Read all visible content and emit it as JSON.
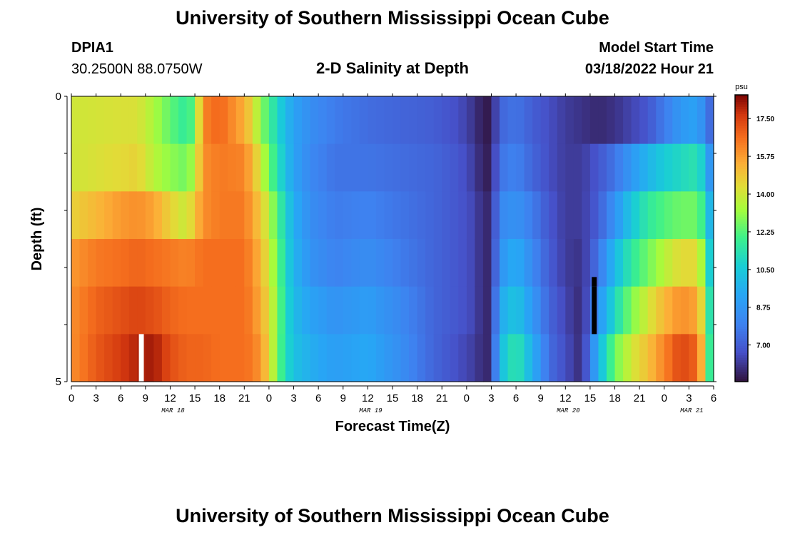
{
  "header": {
    "title": "University of Southern Mississippi Ocean Cube",
    "station_id": "DPIA1",
    "coordinates": "30.2500N  88.0750W",
    "subtitle": "2-D Salinity at Depth",
    "model_start_label": "Model Start Time",
    "model_start_value": "03/18/2022 Hour 21"
  },
  "footer": {
    "title": "University of Southern Mississippi Ocean Cube"
  },
  "chart_data": {
    "type": "heatmap",
    "title": "2-D Salinity at Depth",
    "xlabel": "Forecast Time(Z)",
    "ylabel": "Depth (ft)",
    "ylim": [
      0,
      5
    ],
    "y_tick_labels": [
      "0",
      "5"
    ],
    "x_tick_labels": [
      "0",
      "3",
      "6",
      "9",
      "12",
      "15",
      "18",
      "21",
      "0",
      "3",
      "6",
      "9",
      "12",
      "15",
      "18",
      "21",
      "0",
      "3",
      "6",
      "9",
      "12",
      "15",
      "18",
      "21",
      "0",
      "3",
      "6"
    ],
    "date_labels": [
      {
        "label": "MAR 18",
        "hour": 12
      },
      {
        "label": "MAR 19",
        "hour": 36
      },
      {
        "label": "MAR 20",
        "hour": 60
      },
      {
        "label": "MAR 21",
        "hour": 75
      }
    ],
    "x_range_hours": [
      0,
      78
    ],
    "colorbar": {
      "unit": "psu",
      "range": [
        5.3,
        18.6
      ],
      "tick_labels": [
        "17.50",
        "15.75",
        "14.00",
        "12.25",
        "10.50",
        "8.75",
        "7.00"
      ],
      "tick_values": [
        17.5,
        15.75,
        14.0,
        12.25,
        10.5,
        8.75,
        7.0
      ]
    },
    "depth_layers": 6,
    "time_step_hours": 1,
    "salinity_profile_keypoints": [
      {
        "hour": 0,
        "layers": [
          14.0,
          14.0,
          14.6,
          15.8,
          16.0,
          16.0
        ]
      },
      {
        "hour": 3,
        "layers": [
          14.1,
          14.2,
          15.2,
          16.4,
          16.8,
          17.0
        ]
      },
      {
        "hour": 6,
        "layers": [
          14.2,
          14.4,
          15.8,
          16.6,
          17.2,
          17.6
        ]
      },
      {
        "hour": 8,
        "layers": [
          14.2,
          14.6,
          16.0,
          16.8,
          17.4,
          18.0
        ]
      },
      {
        "hour": 10,
        "layers": [
          13.4,
          13.6,
          15.6,
          16.6,
          17.2,
          18.2
        ]
      },
      {
        "hour": 12,
        "layers": [
          12.4,
          13.0,
          14.6,
          16.4,
          16.8,
          17.2
        ]
      },
      {
        "hour": 14,
        "layers": [
          11.6,
          12.6,
          13.8,
          16.2,
          16.6,
          16.8
        ]
      },
      {
        "hour": 15,
        "layers": [
          12.6,
          13.6,
          15.0,
          16.4,
          16.6,
          16.8
        ]
      },
      {
        "hour": 16,
        "layers": [
          16.2,
          16.0,
          16.0,
          16.6,
          16.6,
          16.8
        ]
      },
      {
        "hour": 18,
        "layers": [
          16.8,
          16.4,
          16.4,
          16.6,
          16.6,
          16.6
        ]
      },
      {
        "hour": 21,
        "layers": [
          15.4,
          16.2,
          16.4,
          16.6,
          16.6,
          16.6
        ]
      },
      {
        "hour": 22,
        "layers": [
          14.4,
          15.2,
          15.6,
          16.0,
          16.2,
          16.4
        ]
      },
      {
        "hour": 23,
        "layers": [
          13.0,
          14.0,
          14.8,
          15.2,
          15.4,
          15.8
        ]
      },
      {
        "hour": 24,
        "layers": [
          12.0,
          12.6,
          13.6,
          14.0,
          14.4,
          14.6
        ]
      },
      {
        "hour": 25,
        "layers": [
          11.0,
          11.4,
          12.2,
          12.6,
          12.8,
          12.6
        ]
      },
      {
        "hour": 26,
        "layers": [
          10.0,
          10.2,
          10.8,
          11.0,
          11.2,
          11.2
        ]
      },
      {
        "hour": 27,
        "layers": [
          9.2,
          9.2,
          9.6,
          9.8,
          10.0,
          10.2
        ]
      },
      {
        "hour": 29,
        "layers": [
          8.4,
          8.2,
          8.4,
          8.6,
          9.2,
          9.6
        ]
      },
      {
        "hour": 32,
        "layers": [
          7.8,
          7.6,
          7.8,
          8.0,
          8.6,
          9.0
        ]
      },
      {
        "hour": 36,
        "layers": [
          7.4,
          7.6,
          8.0,
          8.4,
          9.0,
          9.4
        ]
      },
      {
        "hour": 40,
        "layers": [
          7.2,
          7.4,
          7.6,
          7.8,
          8.2,
          8.4
        ]
      },
      {
        "hour": 44,
        "layers": [
          7.0,
          7.2,
          7.2,
          7.2,
          7.2,
          7.2
        ]
      },
      {
        "hour": 47,
        "layers": [
          6.6,
          6.8,
          6.8,
          6.8,
          6.8,
          6.6
        ]
      },
      {
        "hour": 49,
        "layers": [
          6.0,
          6.2,
          6.4,
          6.4,
          6.4,
          6.2
        ]
      },
      {
        "hour": 50,
        "layers": [
          5.5,
          5.6,
          5.8,
          5.8,
          5.8,
          5.8
        ]
      },
      {
        "hour": 51,
        "layers": [
          5.5,
          5.6,
          5.8,
          5.8,
          5.8,
          5.8
        ]
      },
      {
        "hour": 52,
        "layers": [
          7.2,
          7.6,
          8.2,
          8.6,
          9.4,
          10.0
        ]
      },
      {
        "hour": 54,
        "layers": [
          7.6,
          8.0,
          8.6,
          9.6,
          10.4,
          11.6
        ]
      },
      {
        "hour": 56,
        "layers": [
          7.0,
          7.2,
          7.8,
          8.2,
          8.8,
          9.6
        ]
      },
      {
        "hour": 58,
        "layers": [
          6.6,
          6.6,
          6.8,
          7.0,
          7.2,
          7.4
        ]
      },
      {
        "hour": 60,
        "layers": [
          6.2,
          6.2,
          6.2,
          6.2,
          6.4,
          6.6
        ]
      },
      {
        "hour": 62,
        "layers": [
          6.0,
          6.2,
          6.2,
          6.0,
          5.8,
          5.8
        ]
      },
      {
        "hour": 64,
        "layers": [
          5.8,
          6.8,
          7.0,
          7.6,
          8.6,
          9.8
        ]
      },
      {
        "hour": 66,
        "layers": [
          6.0,
          7.6,
          8.6,
          10.0,
          11.0,
          12.6
        ]
      },
      {
        "hour": 68,
        "layers": [
          6.4,
          8.8,
          10.4,
          11.6,
          12.8,
          14.0
        ]
      },
      {
        "hour": 70,
        "layers": [
          6.8,
          9.8,
          11.6,
          12.6,
          14.0,
          15.0
        ]
      },
      {
        "hour": 72,
        "layers": [
          7.8,
          10.6,
          12.2,
          13.6,
          15.2,
          16.2
        ]
      },
      {
        "hour": 74,
        "layers": [
          8.8,
          11.0,
          12.6,
          14.4,
          16.0,
          17.4
        ]
      },
      {
        "hour": 76,
        "layers": [
          9.2,
          11.4,
          12.6,
          14.4,
          15.6,
          16.8
        ]
      },
      {
        "hour": 77,
        "layers": [
          8.0,
          10.2,
          11.4,
          12.4,
          13.4,
          14.0
        ]
      },
      {
        "hour": 78,
        "layers": [
          6.8,
          7.4,
          8.4,
          9.0,
          9.4,
          9.6
        ]
      }
    ],
    "masked_cells": [
      {
        "hour": 8,
        "layer": 5,
        "fill": "#ffffff"
      },
      {
        "hour": 63,
        "layer": 4,
        "fill": "#000000"
      },
      {
        "hour": 63,
        "layer": 3,
        "fill": "#000000",
        "bottom_fraction": 0.2
      }
    ]
  }
}
